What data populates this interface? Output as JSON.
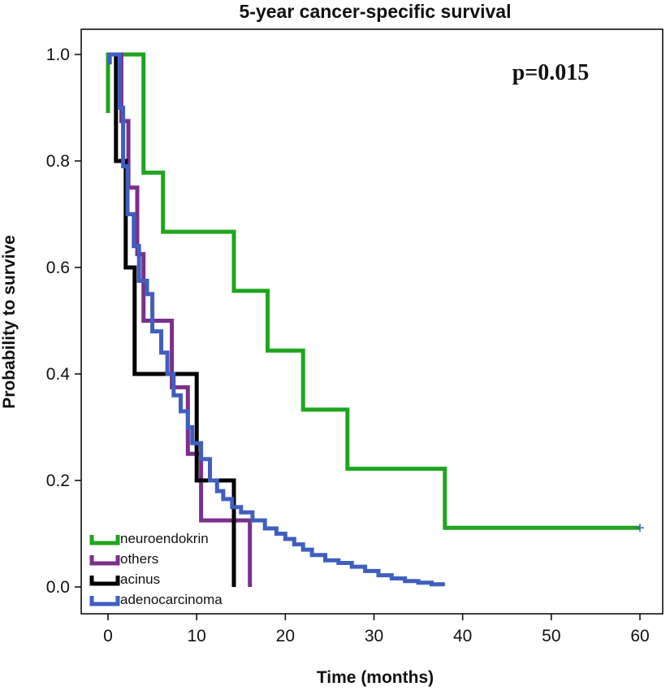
{
  "chart_data": {
    "type": "line",
    "title": "5-year cancer-specific survival",
    "xlabel": "Time (months)",
    "ylabel": "Probability to survive",
    "xlim": [
      0,
      60
    ],
    "ylim": [
      0,
      1
    ],
    "x_ticks": [
      0,
      10,
      20,
      30,
      40,
      50,
      60
    ],
    "x_tick_labels": [
      "0",
      "10",
      "20",
      "30",
      "40",
      "50",
      "60"
    ],
    "y_ticks": [
      0,
      0.2,
      0.4,
      0.6,
      0.8,
      1.0
    ],
    "y_tick_labels": [
      "0.0",
      "0.2",
      "0.4",
      "0.6",
      "0.8",
      "1.0"
    ],
    "annotation": "p=0.015",
    "grid": false,
    "legend_position": "bottom-left",
    "series": [
      {
        "name": "neuroendokrin",
        "color": "#1fa51f",
        "points": [
          [
            0,
            0.89
          ],
          [
            0,
            1.0
          ],
          [
            4,
            1.0
          ],
          [
            4,
            0.778
          ],
          [
            6.2,
            0.778
          ],
          [
            6.2,
            0.667
          ],
          [
            14.2,
            0.667
          ],
          [
            14.2,
            0.556
          ],
          [
            18,
            0.556
          ],
          [
            18,
            0.444
          ],
          [
            22,
            0.444
          ],
          [
            22,
            0.333
          ],
          [
            27,
            0.333
          ],
          [
            27,
            0.222
          ],
          [
            38,
            0.222
          ],
          [
            38,
            0.111
          ],
          [
            60,
            0.111
          ]
        ]
      },
      {
        "name": "others",
        "color": "#7b2f8c",
        "points": [
          [
            0.3,
            1.0
          ],
          [
            1.5,
            1.0
          ],
          [
            1.5,
            0.875
          ],
          [
            2.3,
            0.875
          ],
          [
            2.3,
            0.75
          ],
          [
            3.3,
            0.75
          ],
          [
            3.3,
            0.625
          ],
          [
            4,
            0.625
          ],
          [
            4,
            0.5
          ],
          [
            5.5,
            0.5
          ],
          [
            5.5,
            0.5
          ],
          [
            7.2,
            0.5
          ],
          [
            7.2,
            0.375
          ],
          [
            9,
            0.375
          ],
          [
            9,
            0.25
          ],
          [
            10.5,
            0.25
          ],
          [
            10.5,
            0.125
          ],
          [
            16,
            0.125
          ],
          [
            16,
            0.0
          ]
        ]
      },
      {
        "name": "acinus",
        "color": "#000000",
        "points": [
          [
            0.6,
            1.0
          ],
          [
            0.9,
            1.0
          ],
          [
            0.9,
            0.8
          ],
          [
            2,
            0.8
          ],
          [
            2,
            0.6
          ],
          [
            3,
            0.6
          ],
          [
            3,
            0.4
          ],
          [
            10,
            0.4
          ],
          [
            10,
            0.2
          ],
          [
            14.2,
            0.2
          ],
          [
            14.2,
            0.0
          ]
        ]
      },
      {
        "name": "adenocarcinoma",
        "color": "#3f5fbf",
        "points": [
          [
            0,
            0.985
          ],
          [
            0.2,
            0.985
          ],
          [
            0.2,
            1.0
          ],
          [
            1.3,
            1.0
          ],
          [
            1.3,
            0.9
          ],
          [
            1.7,
            0.9
          ],
          [
            1.7,
            0.79
          ],
          [
            2.2,
            0.79
          ],
          [
            2.2,
            0.7
          ],
          [
            2.9,
            0.7
          ],
          [
            2.9,
            0.64
          ],
          [
            3.5,
            0.64
          ],
          [
            3.5,
            0.575
          ],
          [
            4.4,
            0.575
          ],
          [
            4.4,
            0.55
          ],
          [
            5,
            0.55
          ],
          [
            5,
            0.48
          ],
          [
            6,
            0.48
          ],
          [
            6,
            0.44
          ],
          [
            6.7,
            0.44
          ],
          [
            6.7,
            0.4
          ],
          [
            7.4,
            0.4
          ],
          [
            7.4,
            0.36
          ],
          [
            8.2,
            0.36
          ],
          [
            8.2,
            0.33
          ],
          [
            9,
            0.33
          ],
          [
            9,
            0.3
          ],
          [
            9.5,
            0.3
          ],
          [
            9.5,
            0.27
          ],
          [
            10.5,
            0.27
          ],
          [
            10.5,
            0.24
          ],
          [
            11.5,
            0.24
          ],
          [
            11.5,
            0.2
          ],
          [
            12.3,
            0.2
          ],
          [
            12.3,
            0.18
          ],
          [
            13,
            0.18
          ],
          [
            13,
            0.165
          ],
          [
            14,
            0.165
          ],
          [
            14,
            0.15
          ],
          [
            15,
            0.15
          ],
          [
            15,
            0.14
          ],
          [
            16.3,
            0.14
          ],
          [
            16.3,
            0.125
          ],
          [
            17.7,
            0.125
          ],
          [
            17.7,
            0.11
          ],
          [
            19,
            0.11
          ],
          [
            19,
            0.1
          ],
          [
            20,
            0.1
          ],
          [
            20,
            0.09
          ],
          [
            21,
            0.09
          ],
          [
            21,
            0.08
          ],
          [
            22,
            0.08
          ],
          [
            22,
            0.07
          ],
          [
            23,
            0.07
          ],
          [
            23,
            0.06
          ],
          [
            24.5,
            0.06
          ],
          [
            24.5,
            0.05
          ],
          [
            26,
            0.05
          ],
          [
            26,
            0.045
          ],
          [
            27.5,
            0.045
          ],
          [
            27.5,
            0.038
          ],
          [
            29,
            0.038
          ],
          [
            29,
            0.03
          ],
          [
            30.5,
            0.03
          ],
          [
            30.5,
            0.022
          ],
          [
            32,
            0.022
          ],
          [
            32,
            0.016
          ],
          [
            33.5,
            0.016
          ],
          [
            33.5,
            0.011
          ],
          [
            35,
            0.011
          ],
          [
            35,
            0.008
          ],
          [
            36.5,
            0.008
          ],
          [
            36.5,
            0.005
          ],
          [
            38,
            0.005
          ]
        ]
      }
    ]
  }
}
